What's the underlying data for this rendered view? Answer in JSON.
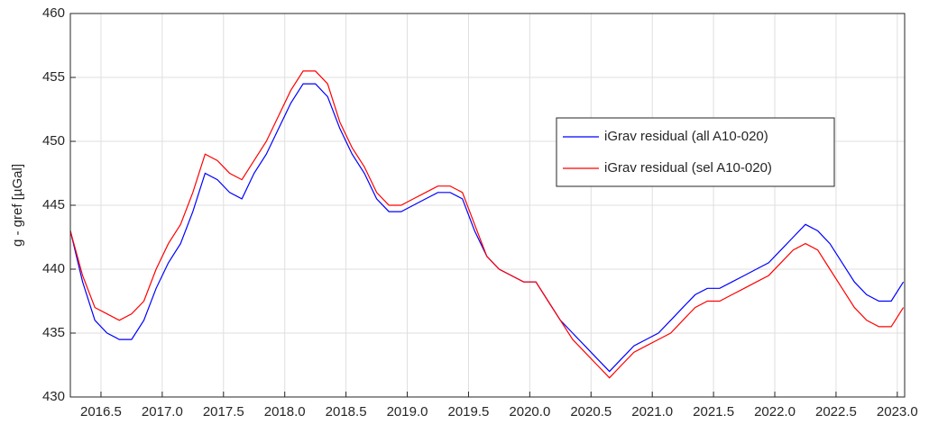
{
  "chart_data": {
    "type": "line",
    "y_label": "g - gref [µGal]",
    "x": [
      2016.25,
      2016.35,
      2016.45,
      2016.55,
      2016.65,
      2016.75,
      2016.85,
      2016.95,
      2017.05,
      2017.15,
      2017.25,
      2017.35,
      2017.45,
      2017.55,
      2017.65,
      2017.75,
      2017.85,
      2017.95,
      2018.05,
      2018.15,
      2018.25,
      2018.35,
      2018.45,
      2018.55,
      2018.65,
      2018.75,
      2018.85,
      2018.95,
      2019.05,
      2019.15,
      2019.25,
      2019.35,
      2019.45,
      2019.55,
      2019.65,
      2019.75,
      2019.85,
      2019.95,
      2020.05,
      2020.15,
      2020.25,
      2020.35,
      2020.45,
      2020.55,
      2020.65,
      2020.75,
      2020.85,
      2020.95,
      2021.05,
      2021.15,
      2021.25,
      2021.35,
      2021.45,
      2021.55,
      2021.65,
      2021.75,
      2021.85,
      2021.95,
      2022.05,
      2022.15,
      2022.25,
      2022.35,
      2022.45,
      2022.55,
      2022.65,
      2022.75,
      2022.85,
      2022.95,
      2023.05
    ],
    "series": [
      {
        "name": "iGrav residual (all A10-020)",
        "color": "#0000ff",
        "values": [
          443,
          439,
          436,
          435,
          434.5,
          434.5,
          436,
          438.5,
          440.5,
          442,
          444.5,
          447.5,
          447,
          446,
          445.5,
          447.5,
          449,
          451,
          453,
          454.5,
          454.5,
          453.5,
          451,
          449,
          447.5,
          445.5,
          444.5,
          444.5,
          445,
          445.5,
          446,
          446,
          445.5,
          443,
          441,
          440,
          439.5,
          439,
          439,
          437.5,
          436,
          435,
          434,
          433,
          432,
          433,
          434,
          434.5,
          435,
          436,
          437,
          438,
          438.5,
          438.5,
          439,
          439.5,
          440,
          440.5,
          441.5,
          442.5,
          443.5,
          443,
          442,
          440.5,
          439,
          438,
          437.5,
          437.5,
          439
        ]
      },
      {
        "name": "iGrav residual (sel A10-020)",
        "color": "#ff0000",
        "values": [
          443,
          439.5,
          437,
          436.5,
          436,
          436.5,
          437.5,
          440,
          442,
          443.5,
          446,
          449,
          448.5,
          447.5,
          447,
          448.5,
          450,
          452,
          454,
          455.5,
          455.5,
          454.5,
          451.5,
          449.5,
          448,
          446,
          445,
          445,
          445.5,
          446,
          446.5,
          446.5,
          446,
          443.5,
          441,
          440,
          439.5,
          439,
          439,
          437.5,
          436,
          434.5,
          433.5,
          432.5,
          431.5,
          432.5,
          433.5,
          434,
          434.5,
          435,
          436,
          437,
          437.5,
          437.5,
          438,
          438.5,
          439,
          439.5,
          440.5,
          441.5,
          442,
          441.5,
          440,
          438.5,
          437,
          436,
          435.5,
          435.5,
          437
        ]
      }
    ],
    "xlim": [
      2016.25,
      2023.06
    ],
    "ylim": [
      430,
      460
    ],
    "xticks": [
      2016.5,
      {
        "value": 2017,
        "label": "2017.0"
      },
      2017.5,
      {
        "value": 2018,
        "label": "2018.0"
      },
      2018.5,
      {
        "value": 2019,
        "label": "2019.0"
      },
      2019.5,
      {
        "value": 2020,
        "label": "2020.0"
      },
      2020.5,
      {
        "value": 2021,
        "label": "2021.0"
      },
      2021.5,
      {
        "value": 2022,
        "label": "2022.0"
      },
      2022.5,
      {
        "value": 2023,
        "label": "2023.0"
      }
    ],
    "yticks": [
      430,
      435,
      440,
      445,
      450,
      455,
      460
    ],
    "grid": true,
    "legend": "upper right"
  }
}
